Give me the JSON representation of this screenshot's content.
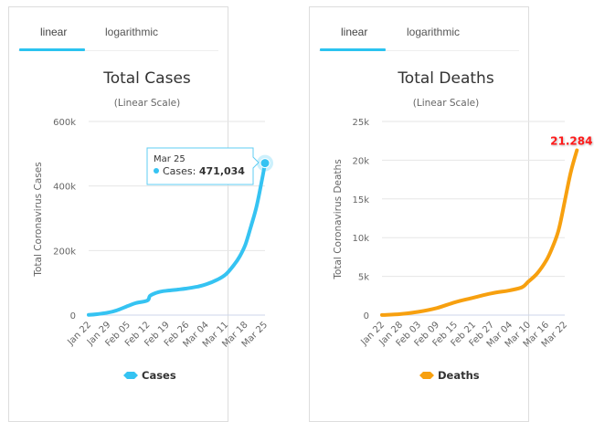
{
  "left_panel": {
    "tabs": [
      {
        "label": "linear",
        "active": true
      },
      {
        "label": "logarithmic",
        "active": false
      }
    ],
    "tooltip": {
      "date": "Mar 25",
      "series": "Cases",
      "value": "471,034",
      "prefix": "Cases: "
    }
  },
  "right_panel": {
    "tabs": [
      {
        "label": "linear",
        "active": true
      },
      {
        "label": "logarithmic",
        "active": false
      }
    ],
    "data_label": "21.284"
  },
  "colors": {
    "cases": "#35c3f2",
    "deaths": "#f7a00f",
    "tab_active": "#2bc3f0",
    "data_label": "#ff1a1a"
  },
  "chart_data": [
    {
      "type": "line",
      "title": "Total Cases",
      "subtitle": "(Linear Scale)",
      "xlabel": "",
      "ylabel": "Total Coronavirus Cases",
      "ylim": [
        0,
        600000
      ],
      "yticks": [
        0,
        200000,
        400000,
        600000
      ],
      "ytick_labels": [
        "0",
        "200k",
        "400k",
        "600k"
      ],
      "xtick_labels": [
        "Jan 22",
        "Jan 29",
        "Feb 05",
        "Feb 12",
        "Feb 19",
        "Feb 26",
        "Mar 04",
        "Mar 11",
        "Mar 18",
        "Mar 25"
      ],
      "grid": true,
      "legend": "bottom",
      "series": [
        {
          "name": "Cases",
          "x": [
            "Jan 22",
            "Jan 25",
            "Jan 29",
            "Feb 01",
            "Feb 05",
            "Feb 08",
            "Feb 12",
            "Feb 13",
            "Feb 16",
            "Feb 19",
            "Feb 23",
            "Feb 26",
            "Mar 01",
            "Mar 04",
            "Mar 08",
            "Mar 11",
            "Mar 14",
            "Mar 16",
            "Mar 18",
            "Mar 20",
            "Mar 22",
            "Mar 24",
            "Mar 25"
          ],
          "values": [
            580,
            2900,
            7800,
            14500,
            28200,
            37600,
            45200,
            60400,
            71300,
            75700,
            79300,
            82400,
            88400,
            95300,
            109800,
            126100,
            156400,
            182400,
            218800,
            275500,
            337500,
            422600,
            471034
          ]
        }
      ]
    },
    {
      "type": "line",
      "title": "Total Deaths",
      "subtitle": "(Linear Scale)",
      "xlabel": "",
      "ylabel": "Total Coronavirus Deaths",
      "ylim": [
        0,
        25000
      ],
      "yticks": [
        0,
        5000,
        10000,
        15000,
        20000,
        25000
      ],
      "ytick_labels": [
        "0",
        "5k",
        "10k",
        "15k",
        "20k",
        "25k"
      ],
      "xtick_labels": [
        "Jan 22",
        "Jan 28",
        "Feb 03",
        "Feb 09",
        "Feb 15",
        "Feb 21",
        "Feb 27",
        "Mar 04",
        "Mar 10",
        "Mar 16",
        "Mar 22"
      ],
      "grid": true,
      "legend": "bottom",
      "series": [
        {
          "name": "Deaths",
          "x": [
            "Jan 22",
            "Jan 28",
            "Feb 03",
            "Feb 09",
            "Feb 15",
            "Feb 21",
            "Feb 27",
            "Mar 04",
            "Mar 08",
            "Mar 10",
            "Mar 13",
            "Mar 16",
            "Mar 18",
            "Mar 20",
            "Mar 22",
            "Mar 24",
            "Mar 26"
          ],
          "values": [
            17,
            132,
            427,
            910,
            1666,
            2247,
            2810,
            3200,
            3600,
            4300,
            5400,
            7100,
            8800,
            11000,
            14700,
            18500,
            21284
          ]
        }
      ],
      "annotations": [
        {
          "x": "Mar 26",
          "text": "21.284"
        }
      ]
    }
  ]
}
